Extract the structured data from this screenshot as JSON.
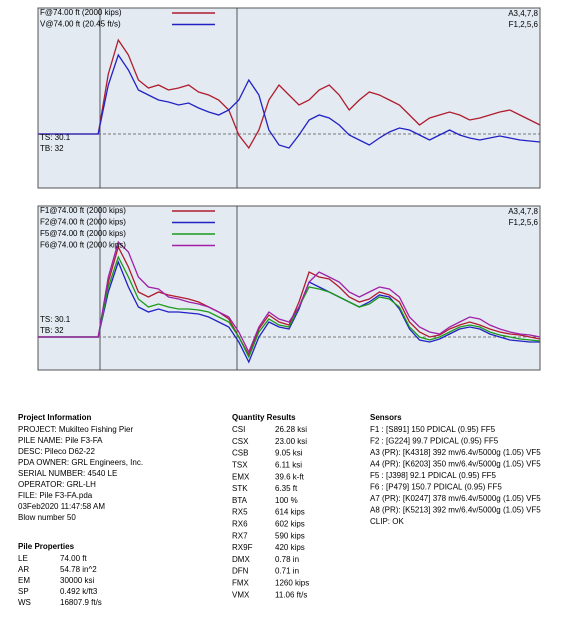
{
  "chart_data": [
    {
      "type": "line",
      "x": [
        0,
        1,
        2,
        3,
        4,
        5,
        6,
        7,
        8,
        9,
        10,
        11,
        12,
        13,
        14,
        15,
        16,
        17,
        18,
        19,
        20,
        21,
        22,
        23,
        24,
        25,
        26,
        27,
        28,
        29,
        30,
        31,
        32,
        33,
        34,
        35,
        36,
        37,
        38,
        39,
        40,
        41,
        42,
        43,
        44,
        45,
        46,
        47,
        48,
        49,
        50
      ],
      "xlim": [
        0,
        50
      ],
      "ylim": [
        -54,
        126
      ],
      "series": [
        {
          "name": "F@74.00 ft (2000 kips)",
          "color": "#b01c2e",
          "values": [
            0,
            0,
            0,
            0,
            0,
            0,
            0,
            60,
            94,
            79,
            54,
            46,
            49,
            44,
            46,
            49,
            42,
            39,
            34,
            24,
            -1,
            -14,
            4,
            34,
            49,
            39,
            29,
            34,
            44,
            49,
            39,
            24,
            34,
            42,
            39,
            34,
            29,
            19,
            9,
            16,
            19,
            22,
            19,
            14,
            16,
            19,
            22,
            24,
            19,
            14,
            9
          ]
        },
        {
          "name": "V@74.00 ft (20.45 ft/s)",
          "color": "#2222c4",
          "values": [
            0,
            0,
            0,
            0,
            0,
            0,
            0,
            49,
            79,
            64,
            44,
            39,
            34,
            32,
            29,
            31,
            26,
            22,
            19,
            24,
            34,
            54,
            39,
            4,
            -11,
            -14,
            -1,
            14,
            19,
            16,
            9,
            -1,
            -6,
            -11,
            -4,
            2,
            6,
            4,
            -1,
            -6,
            -1,
            4,
            -1,
            -4,
            -6,
            -4,
            -2,
            -4,
            -6,
            -7,
            -8
          ]
        }
      ],
      "side_labels": [
        "A3,4,7,8",
        "F1,2,5,6"
      ],
      "notes": [
        "TS: 30.1",
        "TB: 32"
      ]
    },
    {
      "type": "line",
      "x": [
        0,
        1,
        2,
        3,
        4,
        5,
        6,
        7,
        8,
        9,
        10,
        11,
        12,
        13,
        14,
        15,
        16,
        17,
        18,
        19,
        20,
        21,
        22,
        23,
        24,
        25,
        26,
        27,
        28,
        29,
        30,
        31,
        32,
        33,
        34,
        35,
        36,
        37,
        38,
        39,
        40,
        41,
        42,
        43,
        44,
        45,
        46,
        47,
        48,
        49,
        50
      ],
      "xlim": [
        0,
        50
      ],
      "ylim": [
        -33,
        131
      ],
      "series": [
        {
          "name": "F1@74.00 ft (2000 kips)",
          "color": "#b01c2e",
          "values": [
            0,
            0,
            0,
            0,
            0,
            0,
            0,
            55,
            90,
            70,
            45,
            40,
            45,
            42,
            40,
            38,
            35,
            30,
            25,
            18,
            0,
            -18,
            8,
            22,
            15,
            12,
            35,
            65,
            60,
            58,
            50,
            40,
            35,
            38,
            45,
            42,
            35,
            15,
            5,
            0,
            2,
            8,
            12,
            15,
            12,
            8,
            5,
            3,
            2,
            0,
            -2
          ]
        },
        {
          "name": "F2@74.00 ft (2000 kips)",
          "color": "#2222c4",
          "values": [
            0,
            0,
            0,
            0,
            0,
            0,
            0,
            45,
            75,
            50,
            30,
            25,
            28,
            25,
            25,
            24,
            23,
            20,
            15,
            10,
            -5,
            -25,
            0,
            15,
            10,
            8,
            28,
            55,
            50,
            45,
            40,
            35,
            30,
            35,
            42,
            40,
            28,
            8,
            -3,
            -5,
            -2,
            3,
            8,
            10,
            8,
            3,
            0,
            -3,
            -4,
            -5,
            -5
          ]
        },
        {
          "name": "F5@74.00 ft (2000 kips)",
          "color": "#1c9a1c",
          "values": [
            0,
            0,
            0,
            0,
            0,
            0,
            0,
            50,
            80,
            60,
            38,
            30,
            33,
            30,
            28,
            28,
            27,
            25,
            20,
            15,
            0,
            -20,
            5,
            18,
            12,
            10,
            30,
            50,
            48,
            45,
            40,
            35,
            30,
            33,
            40,
            38,
            30,
            10,
            0,
            -3,
            0,
            5,
            10,
            12,
            10,
            5,
            2,
            0,
            -2,
            -3,
            -4
          ]
        },
        {
          "name": "F6@74.00 ft (2000 kips)",
          "color": "#a020a8",
          "values": [
            0,
            0,
            0,
            0,
            0,
            0,
            0,
            60,
            95,
            85,
            60,
            50,
            48,
            40,
            38,
            35,
            33,
            30,
            25,
            20,
            5,
            -15,
            10,
            25,
            18,
            15,
            30,
            55,
            65,
            60,
            55,
            45,
            40,
            45,
            50,
            48,
            40,
            20,
            10,
            5,
            3,
            10,
            15,
            20,
            18,
            12,
            8,
            5,
            3,
            2,
            0
          ]
        }
      ],
      "side_labels": [
        "A3,4,7,8",
        "F1,2,5,6"
      ],
      "notes": [
        "TS: 30.1",
        "TB: 32"
      ]
    }
  ],
  "project": {
    "title": "Project Information",
    "rows": [
      "PROJECT: Mukilteo Fishing Pier",
      "PILE NAME: Pile F3-FA",
      "DESC: Pileco D62-22",
      "PDA OWNER: GRL Engineers, Inc.",
      "SERIAL NUMBER: 4540 LE",
      "OPERATOR: GRL-LH",
      "FILE: Pile F3-FA.pda",
      "03Feb2020 11:47:58 AM",
      "Blow number 50"
    ]
  },
  "pile": {
    "title": "Pile Properties",
    "rows": [
      [
        "LE",
        "74.00 ft"
      ],
      [
        "AR",
        "54.78 in^2"
      ],
      [
        "EM",
        "30000 ksi"
      ],
      [
        "SP",
        "0.492 k/ft3"
      ],
      [
        "WS",
        "16807.9 ft/s"
      ]
    ]
  },
  "quantities": {
    "title": "Quantity Results",
    "rows": [
      [
        "CSI",
        "26.28 ksi"
      ],
      [
        "CSX",
        "23.00 ksi"
      ],
      [
        "CSB",
        "9.05 ksi"
      ],
      [
        "TSX",
        "6.11 ksi"
      ],
      [
        "EMX",
        "39.6 k-ft"
      ],
      [
        "STK",
        "6.35 ft"
      ],
      [
        "BTA",
        "100 %"
      ],
      [
        "RX5",
        "614 kips"
      ],
      [
        "RX6",
        "602 kips"
      ],
      [
        "RX7",
        "590 kips"
      ],
      [
        "RX9F",
        "420 kips"
      ],
      [
        "DMX",
        "0.78 in"
      ],
      [
        "DFN",
        "0.71 in"
      ],
      [
        "FMX",
        "1260 kips"
      ],
      [
        "VMX",
        "11.06 ft/s"
      ]
    ]
  },
  "sensors": {
    "title": "Sensors",
    "rows": [
      "F1 : [S891] 150 PDICAL (0.95) FF5",
      "F2 : [G224] 99.7 PDICAL (0.95) FF5",
      "A3 (PR): [K4318] 392 mv/6.4v/5000g (1.05) VF5",
      "A4 (PR): [K6203] 350 mv/6.4v/5000g (1.05) VF5",
      "F5 : [J398] 92.1 PDICAL (0.95) FF5",
      "F6 : [P479] 150.7 PDICAL (0.95) FF5",
      "A7 (PR): [K0247] 378 mv/6.4v/5000g (1.05) VF5",
      "A8 (PR): [K5213] 392 mv/6.4v/5000g (1.05) VF5",
      "CLIP: OK"
    ]
  }
}
